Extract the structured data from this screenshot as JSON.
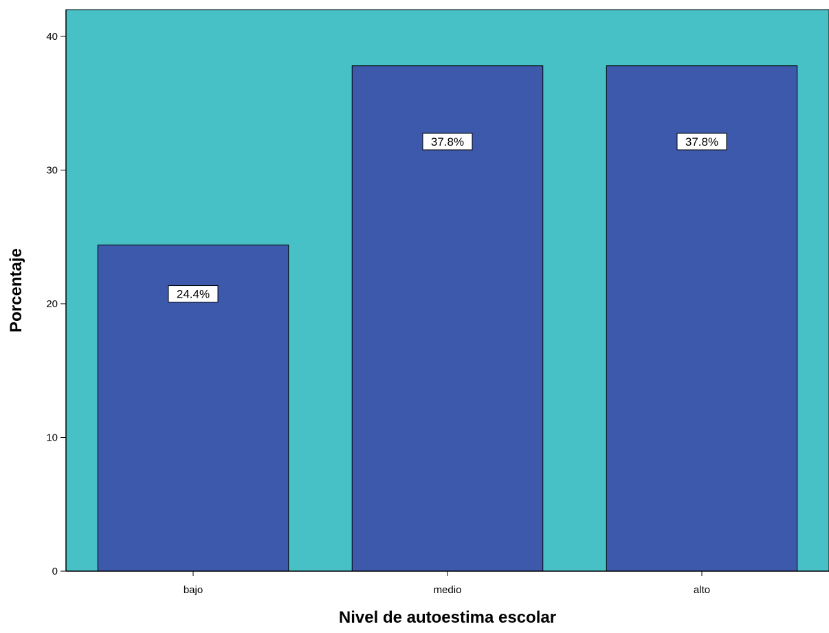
{
  "chart_data": {
    "type": "bar",
    "categories": [
      "bajo",
      "medio",
      "alto"
    ],
    "values": [
      24.4,
      37.8,
      37.8
    ],
    "data_labels": [
      "24.4%",
      "37.8%",
      "37.8%"
    ],
    "xlabel": "Nivel de autoestima escolar",
    "ylabel": "Porcentaje",
    "ylim": [
      0,
      42
    ],
    "yticks": [
      0,
      10,
      20,
      30,
      40
    ],
    "grid": false,
    "colors": {
      "plot_background": "#48c1c6",
      "bar_fill": "#3d59ab",
      "bar_stroke": "#000000",
      "label_background": "#ffffff"
    }
  }
}
